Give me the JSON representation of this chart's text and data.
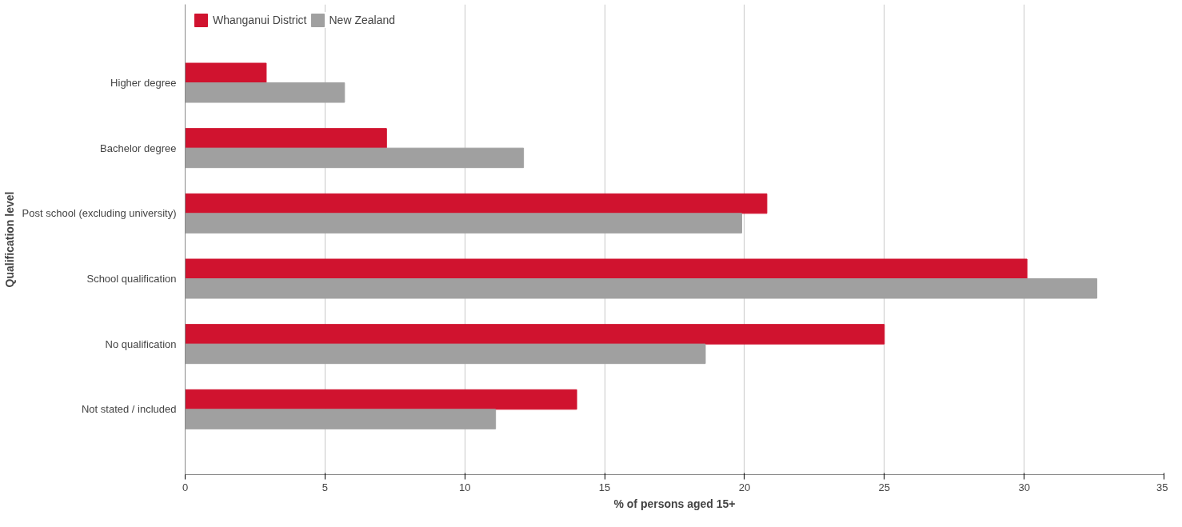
{
  "chart_data": {
    "type": "bar",
    "orientation": "horizontal",
    "xlabel": "% of persons aged 15+",
    "ylabel": "Qualification level",
    "categories": [
      "Higher degree",
      "Bachelor degree",
      "Post school (excluding university)",
      "School qualification",
      "No qualification",
      "Not stated / included"
    ],
    "series": [
      {
        "name": "Whanganui District",
        "color": "#d0132f",
        "values": [
          2.9,
          7.2,
          20.8,
          30.1,
          25.0,
          14.0
        ]
      },
      {
        "name": "New Zealand",
        "color": "#a0a0a0",
        "values": [
          5.7,
          12.1,
          19.9,
          32.6,
          18.6,
          11.1
        ]
      }
    ],
    "xlim": [
      0,
      35
    ],
    "xticks": [
      0,
      5,
      10,
      15,
      20,
      25,
      30,
      35
    ],
    "grid": "x",
    "legend": "top left"
  }
}
